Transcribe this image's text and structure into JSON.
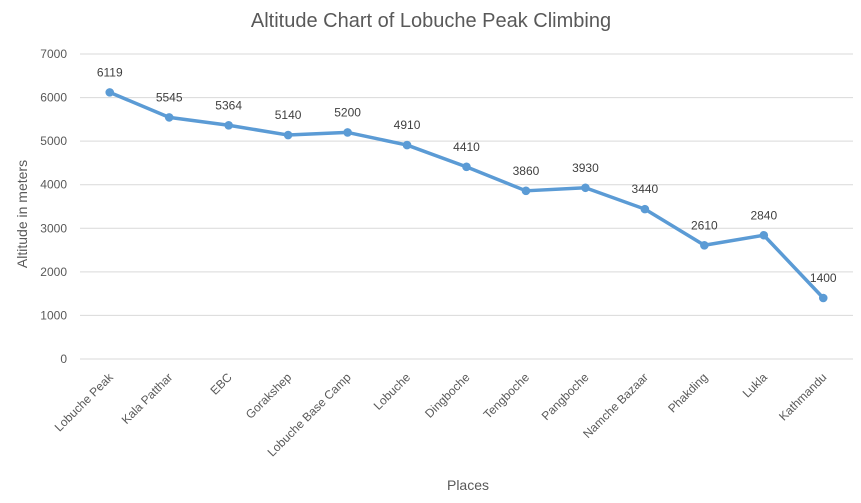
{
  "chart_data": {
    "type": "line",
    "title": "Altitude Chart of Lobuche Peak Climbing",
    "xlabel": "Places",
    "ylabel": "Altitude in meters",
    "categories": [
      "Lobuche Peak",
      "Kala Patthar",
      "EBC",
      "Gorakshep",
      "Lobuche Base Camp",
      "Lobuche",
      "Dingboche",
      "Tengboche",
      "Pangboche",
      "Namche Bazaar",
      "Phakding",
      "Lukla",
      "Kathmandu"
    ],
    "series": [
      {
        "values": [
          6119,
          5545,
          5364,
          5140,
          5200,
          4910,
          4410,
          3860,
          3930,
          3440,
          2610,
          2840,
          1400
        ],
        "color": "#5b9bd5"
      }
    ],
    "ylim": [
      0,
      7000
    ],
    "yticks": [
      "0",
      "1000",
      "2000",
      "3000",
      "4000",
      "5000",
      "6000",
      "7000"
    ],
    "grid": true,
    "data_labels": true,
    "legend": "none"
  }
}
